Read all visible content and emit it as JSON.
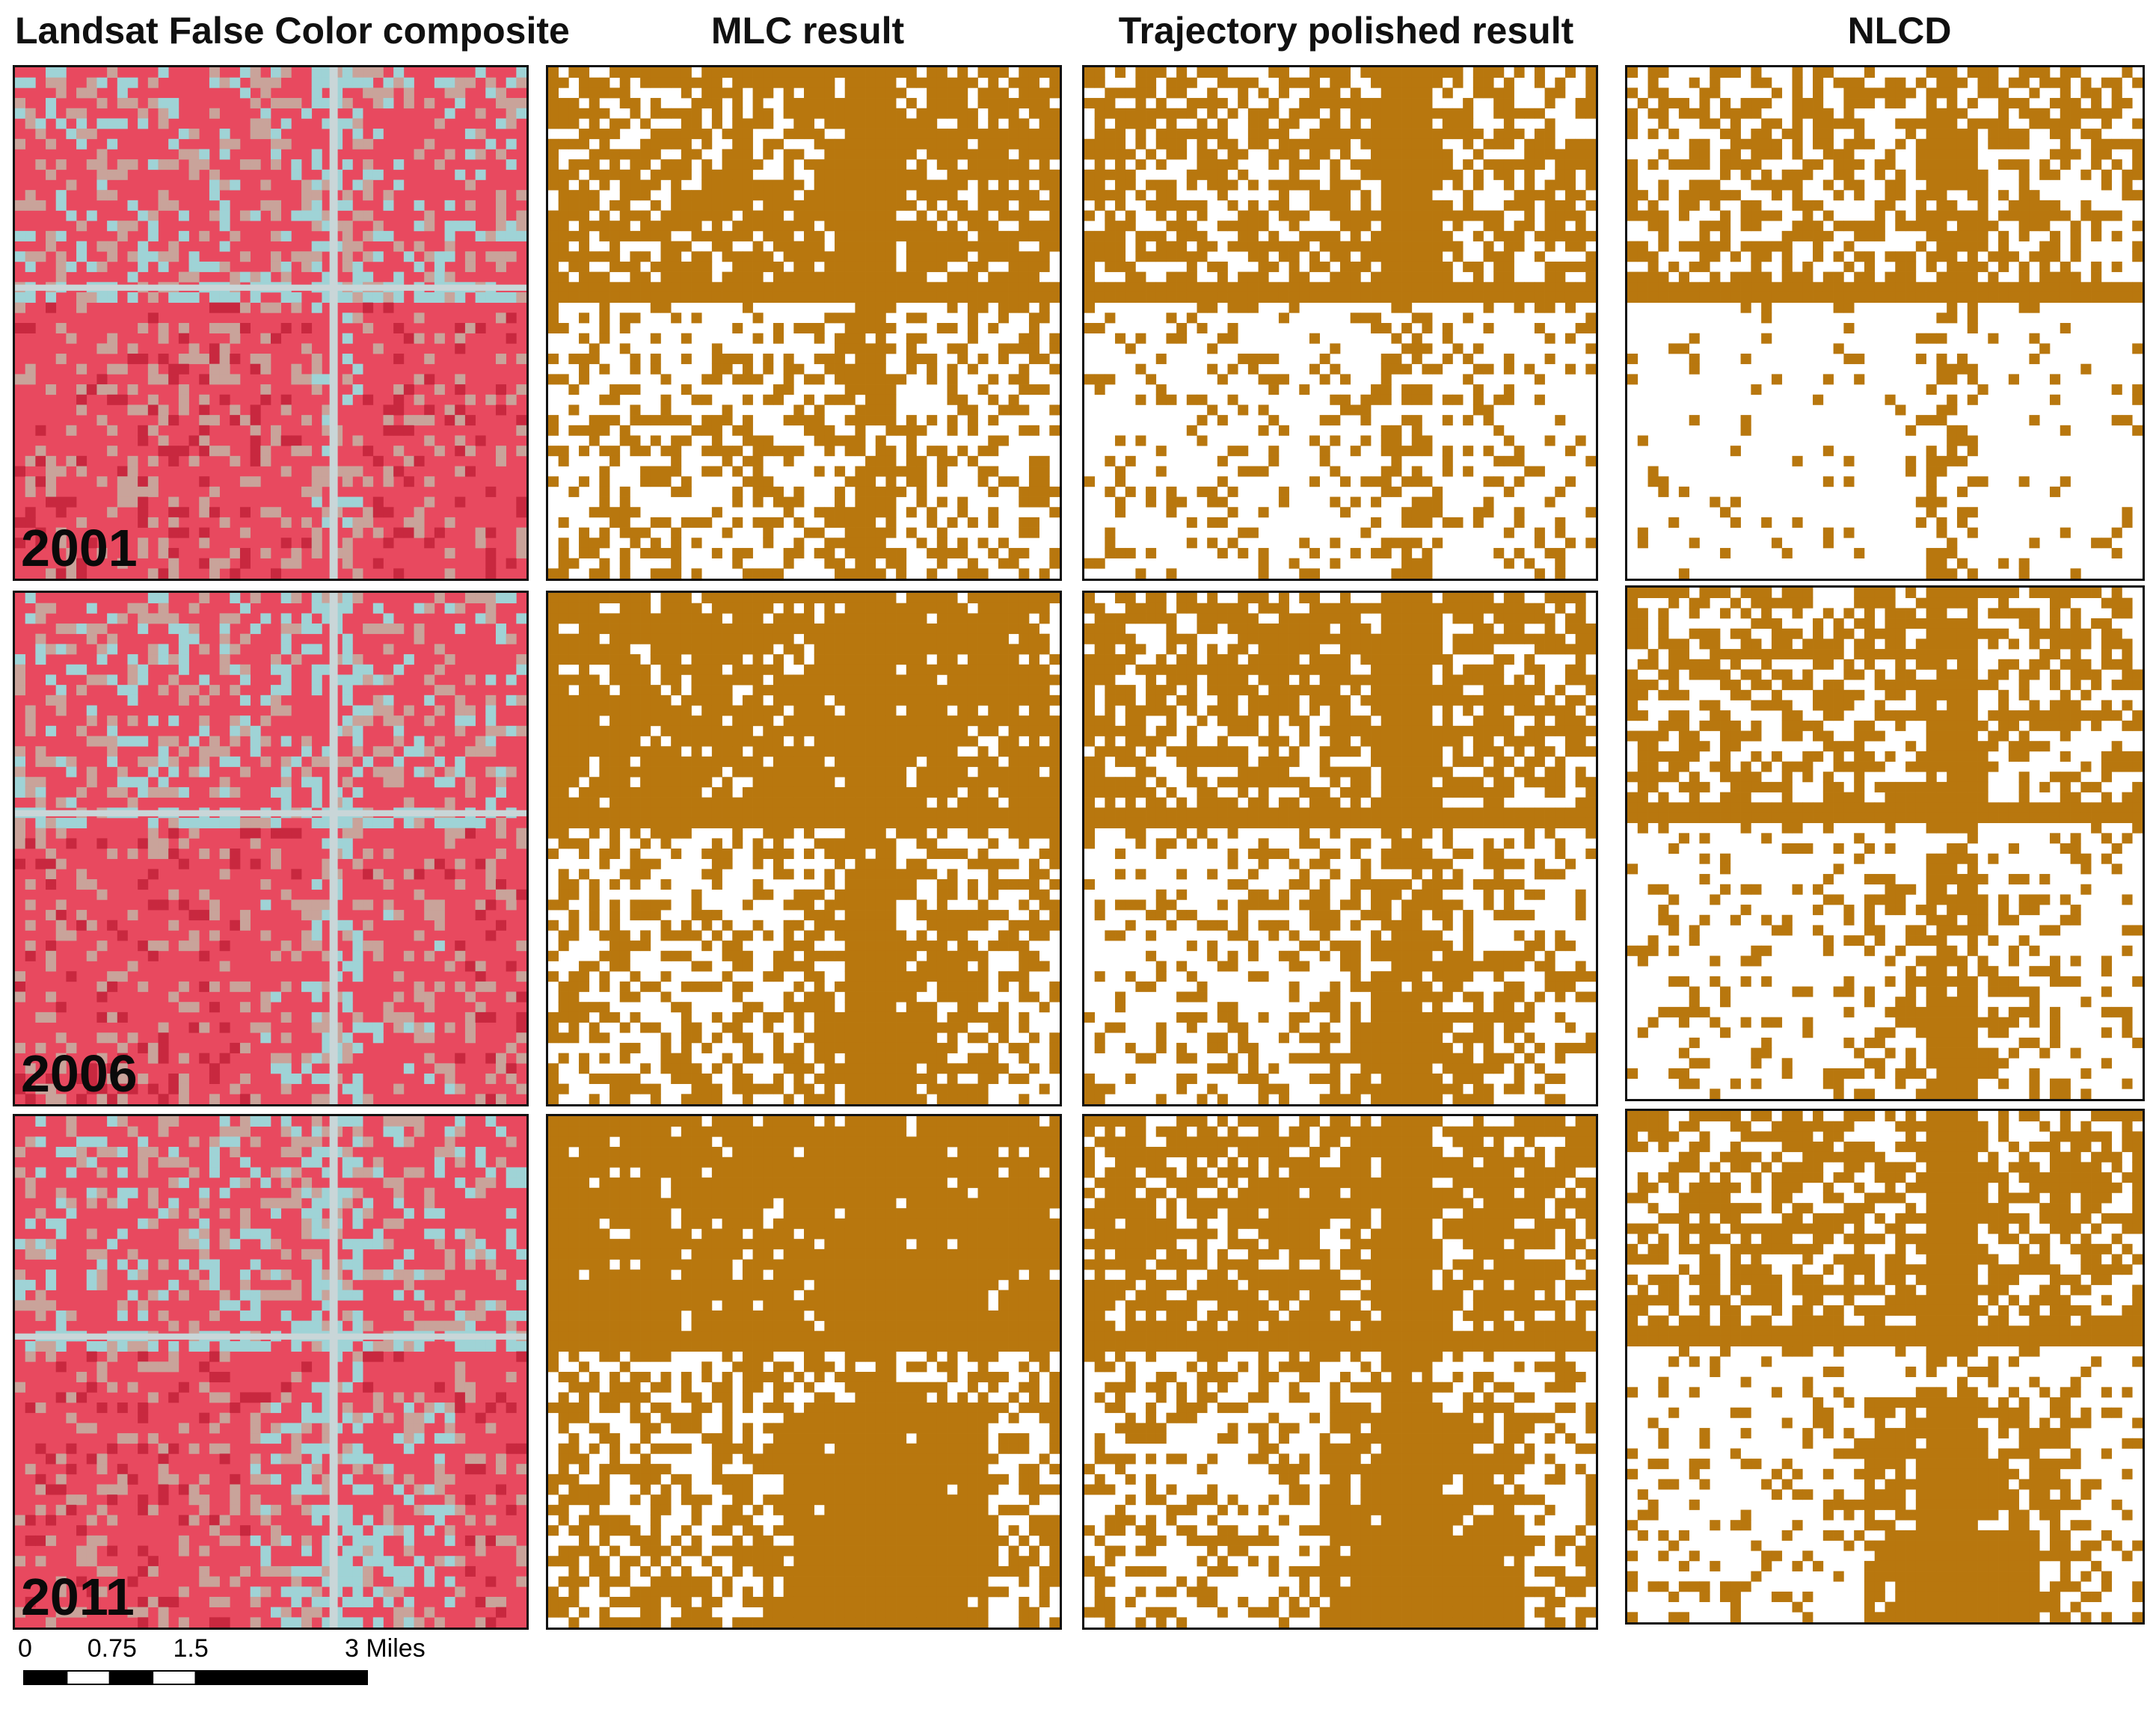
{
  "columns": [
    {
      "title": "Landsat False Color composite",
      "type": "composite"
    },
    {
      "title": "MLC result",
      "type": "mlc"
    },
    {
      "title": "Trajectory polished result",
      "type": "trajectory"
    },
    {
      "title": "NLCD",
      "type": "nlcd"
    }
  ],
  "rows": [
    {
      "year": "2001"
    },
    {
      "year": "2006"
    },
    {
      "year": "2011"
    }
  ],
  "scale_bar": {
    "labels": [
      "0",
      "0.75",
      "1.5",
      "3 Miles"
    ],
    "values": [
      0,
      0.75,
      1.5,
      3
    ],
    "unit": "Miles"
  },
  "colors": {
    "urban": "#b8770e",
    "composite_vegetation": "#e8495f",
    "composite_urban": "#9fd3d6",
    "composite_bare": "#c9a39a",
    "panel_border": "#111111"
  }
}
